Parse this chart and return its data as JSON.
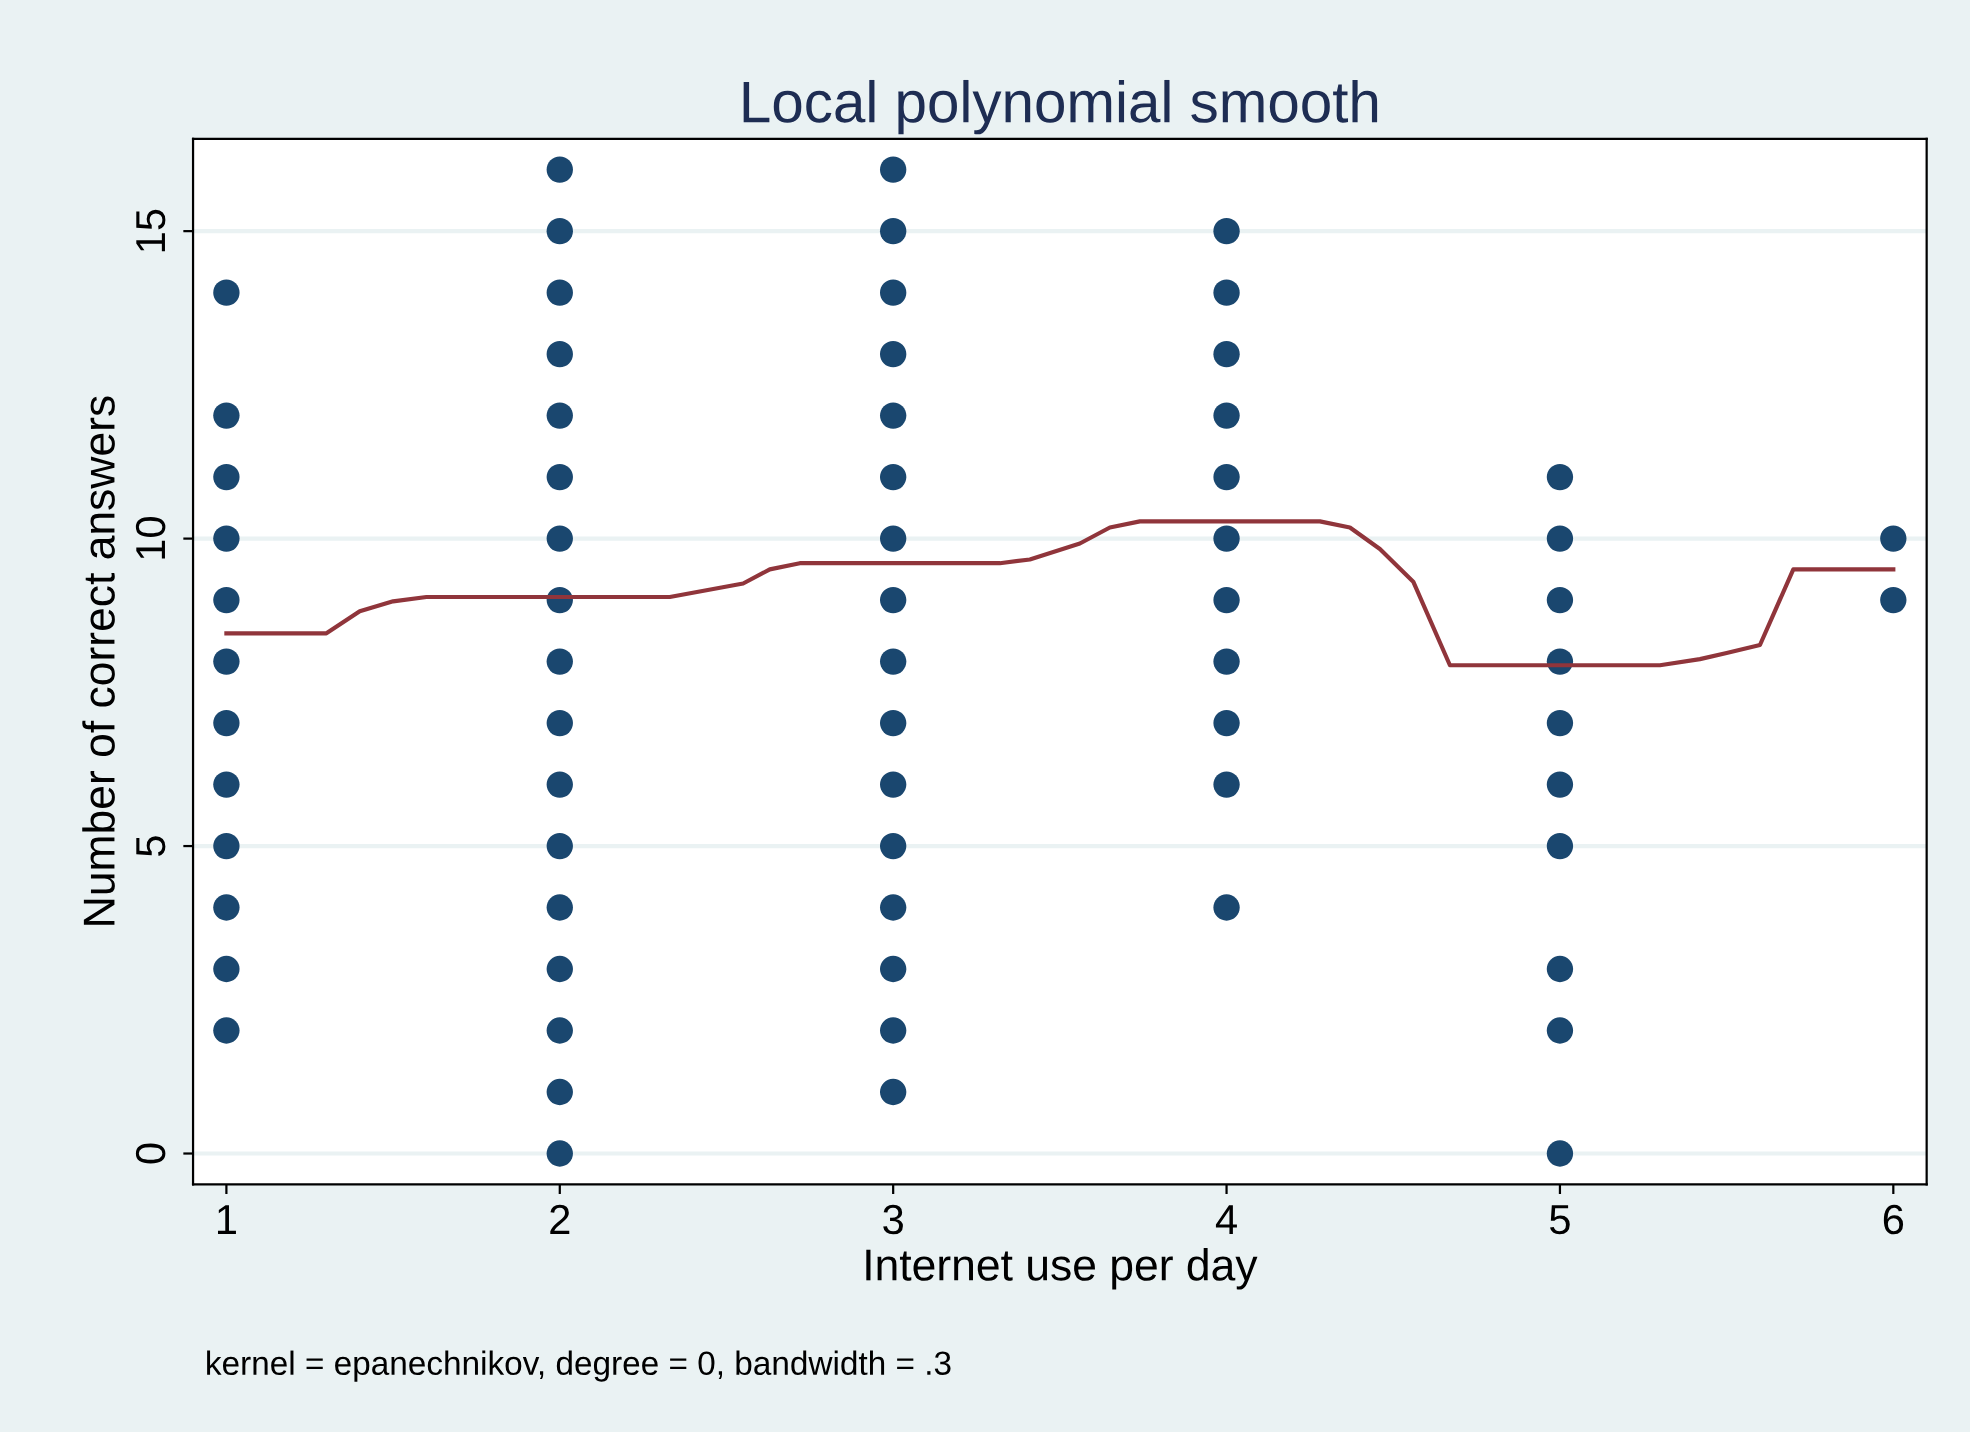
{
  "chart_data": {
    "type": "scatter",
    "title": "Local polynomial smooth",
    "xlabel": "Internet use per day",
    "ylabel": "Number of correct answers",
    "annotations": [
      "kernel = epanechnikov, degree = 0, bandwidth = .3"
    ],
    "series": [
      {
        "color": "#1a476f",
        "marker": "circle",
        "x": [
          1,
          1,
          1,
          1,
          1,
          1,
          1,
          1,
          1,
          1,
          1,
          1,
          2,
          2,
          2,
          2,
          2,
          2,
          2,
          2,
          2,
          2,
          2,
          2,
          2,
          2,
          2,
          2,
          2,
          3,
          3,
          3,
          3,
          3,
          3,
          3,
          3,
          3,
          3,
          3,
          3,
          3,
          3,
          3,
          3,
          4,
          4,
          4,
          4,
          4,
          4,
          4,
          4,
          4,
          4,
          4,
          5,
          5,
          5,
          5,
          5,
          5,
          5,
          5,
          5,
          5,
          6,
          6
        ],
        "values": [
          14,
          12,
          11,
          10,
          9,
          8,
          7,
          6,
          5,
          4,
          3,
          2,
          16,
          15,
          14,
          13,
          12,
          11,
          10,
          9,
          8,
          7,
          6,
          5,
          4,
          3,
          2,
          1,
          0,
          16,
          15,
          14,
          13,
          12,
          11,
          10,
          9,
          8,
          7,
          6,
          5,
          4,
          3,
          2,
          1,
          15,
          14,
          13,
          12,
          11,
          10,
          9,
          8,
          7,
          6,
          4,
          11,
          10,
          9,
          8,
          7,
          6,
          5,
          3,
          2,
          0,
          10,
          9
        ]
      },
      {
        "type": "line",
        "color": "#90353b",
        "marker": "none",
        "x": [
          1,
          1.3,
          1.4,
          1.5,
          1.6,
          1.73,
          2.33,
          2.55,
          2.63,
          2.72,
          3.32,
          3.41,
          3.56,
          3.65,
          3.74,
          4.28,
          4.37,
          4.46,
          4.56,
          4.67,
          5.3,
          5.42,
          5.5,
          5.6,
          5.7,
          6
        ],
        "values": [
          8.46,
          8.46,
          8.82,
          8.98,
          9.05,
          9.05,
          9.05,
          9.27,
          9.5,
          9.6,
          9.6,
          9.66,
          9.92,
          10.18,
          10.28,
          10.28,
          10.18,
          9.83,
          9.3,
          7.94,
          7.94,
          8.04,
          8.14,
          8.27,
          9.5,
          9.5
        ]
      }
    ],
    "xlim": [
      0.9,
      6.1
    ],
    "ylim": [
      -0.5,
      16.5
    ],
    "xticks": [
      1,
      2,
      3,
      4,
      5,
      6
    ],
    "yticks": [
      0,
      5,
      10,
      15
    ],
    "grid": "y",
    "legend": false
  }
}
